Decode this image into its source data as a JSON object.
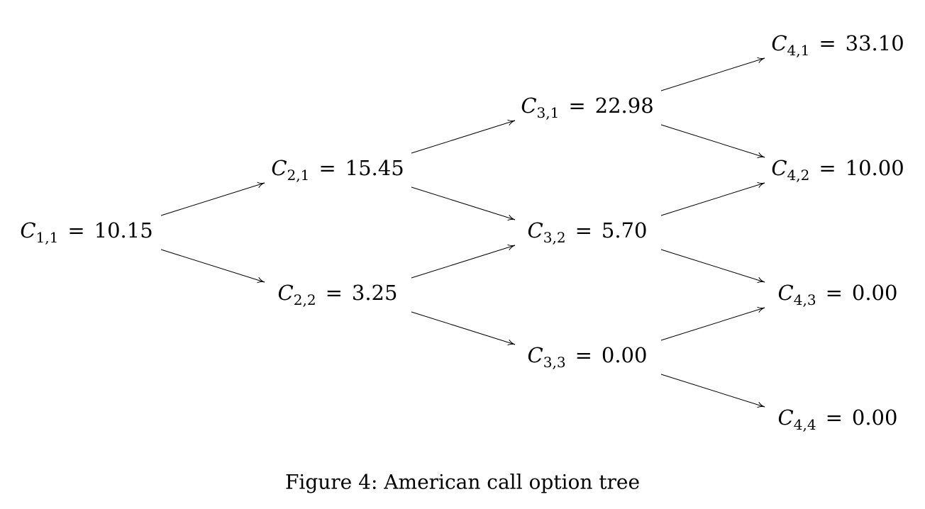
{
  "diagram": {
    "symbol": "C",
    "equals": "=",
    "nodes": [
      {
        "id": "n11",
        "sub": "1,1",
        "value": "10.15"
      },
      {
        "id": "n21",
        "sub": "2,1",
        "value": "15.45"
      },
      {
        "id": "n22",
        "sub": "2,2",
        "value": "3.25"
      },
      {
        "id": "n31",
        "sub": "3,1",
        "value": "22.98"
      },
      {
        "id": "n32",
        "sub": "3,2",
        "value": "5.70"
      },
      {
        "id": "n33",
        "sub": "3,3",
        "value": "0.00"
      },
      {
        "id": "n41",
        "sub": "4,1",
        "value": "33.10"
      },
      {
        "id": "n42",
        "sub": "4,2",
        "value": "10.00"
      },
      {
        "id": "n43",
        "sub": "4,3",
        "value": "0.00"
      },
      {
        "id": "n44",
        "sub": "4,4",
        "value": "0.00"
      }
    ],
    "edges": [
      [
        "n11",
        "n21"
      ],
      [
        "n11",
        "n22"
      ],
      [
        "n21",
        "n31"
      ],
      [
        "n21",
        "n32"
      ],
      [
        "n22",
        "n32"
      ],
      [
        "n22",
        "n33"
      ],
      [
        "n31",
        "n41"
      ],
      [
        "n31",
        "n42"
      ],
      [
        "n32",
        "n42"
      ],
      [
        "n32",
        "n43"
      ],
      [
        "n33",
        "n43"
      ],
      [
        "n33",
        "n44"
      ]
    ]
  },
  "caption": "Figure 4:  American call option tree"
}
